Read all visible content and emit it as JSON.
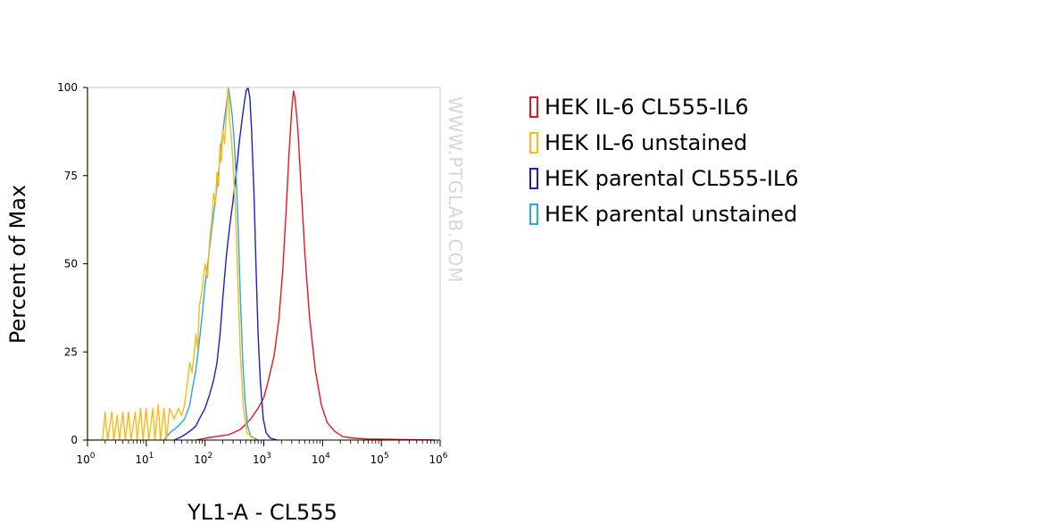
{
  "chart_data": {
    "type": "line",
    "title": "",
    "xlabel": "YL1-A - CL555",
    "ylabel": "Percent of Max",
    "xscale": "log",
    "xlim": [
      1,
      1000000
    ],
    "ylim": [
      0,
      100
    ],
    "yticks": [
      "0",
      "25",
      "50",
      "75",
      "100"
    ],
    "xticks": [
      {
        "base": "10",
        "exp": "0"
      },
      {
        "base": "10",
        "exp": "1"
      },
      {
        "base": "10",
        "exp": "2"
      },
      {
        "base": "10",
        "exp": "3"
      },
      {
        "base": "10",
        "exp": "4"
      },
      {
        "base": "10",
        "exp": "5"
      },
      {
        "base": "10",
        "exp": "6"
      }
    ],
    "grid": false,
    "legend_position": "right",
    "watermark": "WWW.PTGLAB.COM",
    "series": [
      {
        "name": "HEK IL-6 CL555-IL6",
        "color": "#e8161c",
        "points": [
          [
            70,
            0
          ],
          [
            100,
            0.5
          ],
          [
            150,
            1
          ],
          [
            250,
            1.5
          ],
          [
            400,
            3
          ],
          [
            600,
            6
          ],
          [
            800,
            9
          ],
          [
            1000,
            12
          ],
          [
            1200,
            17
          ],
          [
            1500,
            24
          ],
          [
            1800,
            34
          ],
          [
            2100,
            48
          ],
          [
            2400,
            65
          ],
          [
            2700,
            82
          ],
          [
            3000,
            94
          ],
          [
            3200,
            99
          ],
          [
            3400,
            97
          ],
          [
            3800,
            88
          ],
          [
            4300,
            72
          ],
          [
            5000,
            53
          ],
          [
            6000,
            35
          ],
          [
            7500,
            20
          ],
          [
            9500,
            10
          ],
          [
            12000,
            5
          ],
          [
            16000,
            2.5
          ],
          [
            22000,
            1
          ],
          [
            35000,
            0.5
          ],
          [
            60000,
            0.3
          ],
          [
            150000,
            0.2
          ],
          [
            800000,
            0
          ]
        ]
      },
      {
        "name": "HEK IL-6 unstained",
        "color": "#f9b918",
        "points": [
          [
            1,
            100
          ],
          [
            1,
            0
          ],
          [
            1.8,
            0
          ],
          [
            2,
            8
          ],
          [
            2.2,
            0
          ],
          [
            2.6,
            8
          ],
          [
            2.8,
            0
          ],
          [
            3.2,
            7
          ],
          [
            3.5,
            0
          ],
          [
            4,
            8
          ],
          [
            4.4,
            0
          ],
          [
            5,
            8
          ],
          [
            5.5,
            0
          ],
          [
            6.5,
            8
          ],
          [
            7,
            0
          ],
          [
            8,
            9
          ],
          [
            8.8,
            0
          ],
          [
            10,
            9
          ],
          [
            11,
            0
          ],
          [
            13,
            9
          ],
          [
            14,
            0
          ],
          [
            16,
            10
          ],
          [
            17.5,
            0
          ],
          [
            20,
            9
          ],
          [
            22,
            0
          ],
          [
            25,
            9
          ],
          [
            30,
            6
          ],
          [
            35,
            9
          ],
          [
            40,
            7
          ],
          [
            45,
            10
          ],
          [
            50,
            16
          ],
          [
            55,
            22
          ],
          [
            60,
            19
          ],
          [
            65,
            24
          ],
          [
            70,
            30
          ],
          [
            75,
            26
          ],
          [
            80,
            38
          ],
          [
            90,
            43
          ],
          [
            100,
            50
          ],
          [
            110,
            46
          ],
          [
            120,
            57
          ],
          [
            130,
            62
          ],
          [
            140,
            70
          ],
          [
            150,
            67
          ],
          [
            160,
            76
          ],
          [
            170,
            72
          ],
          [
            180,
            84
          ],
          [
            190,
            79
          ],
          [
            200,
            88
          ],
          [
            215,
            84
          ],
          [
            230,
            92
          ],
          [
            245,
            100
          ],
          [
            260,
            91
          ],
          [
            280,
            86
          ],
          [
            300,
            78
          ],
          [
            330,
            65
          ],
          [
            360,
            46
          ],
          [
            400,
            24
          ],
          [
            450,
            9
          ],
          [
            520,
            2
          ],
          [
            700,
            0.5
          ]
        ]
      },
      {
        "name": "HEK parental CL555-IL6",
        "color": "#1d1ec8",
        "points": [
          [
            30,
            0
          ],
          [
            40,
            1
          ],
          [
            50,
            2
          ],
          [
            60,
            3
          ],
          [
            70,
            4
          ],
          [
            80,
            6
          ],
          [
            100,
            9
          ],
          [
            120,
            13
          ],
          [
            140,
            17
          ],
          [
            160,
            22
          ],
          [
            180,
            30
          ],
          [
            200,
            40
          ],
          [
            230,
            52
          ],
          [
            260,
            60
          ],
          [
            300,
            68
          ],
          [
            340,
            76
          ],
          [
            380,
            84
          ],
          [
            420,
            90
          ],
          [
            460,
            95
          ],
          [
            500,
            99
          ],
          [
            540,
            100
          ],
          [
            580,
            97
          ],
          [
            620,
            88
          ],
          [
            680,
            70
          ],
          [
            740,
            48
          ],
          [
            800,
            30
          ],
          [
            880,
            16
          ],
          [
            980,
            6
          ],
          [
            1100,
            2
          ],
          [
            1300,
            0.5
          ],
          [
            1700,
            0
          ]
        ]
      },
      {
        "name": "HEK parental unstained",
        "color": "#25a9e0",
        "points": [
          [
            20,
            0
          ],
          [
            25,
            2
          ],
          [
            30,
            3
          ],
          [
            35,
            4
          ],
          [
            40,
            5
          ],
          [
            45,
            6
          ],
          [
            50,
            8
          ],
          [
            55,
            10
          ],
          [
            60,
            14
          ],
          [
            70,
            20
          ],
          [
            80,
            28
          ],
          [
            90,
            36
          ],
          [
            100,
            44
          ],
          [
            115,
            52
          ],
          [
            130,
            60
          ],
          [
            145,
            66
          ],
          [
            160,
            72
          ],
          [
            175,
            78
          ],
          [
            190,
            84
          ],
          [
            210,
            90
          ],
          [
            230,
            95
          ],
          [
            250,
            100
          ],
          [
            270,
            96
          ],
          [
            290,
            92
          ],
          [
            310,
            86
          ],
          [
            340,
            74
          ],
          [
            370,
            58
          ],
          [
            400,
            40
          ],
          [
            440,
            22
          ],
          [
            480,
            11
          ],
          [
            530,
            4
          ],
          [
            600,
            1
          ],
          [
            800,
            0
          ]
        ]
      }
    ]
  }
}
